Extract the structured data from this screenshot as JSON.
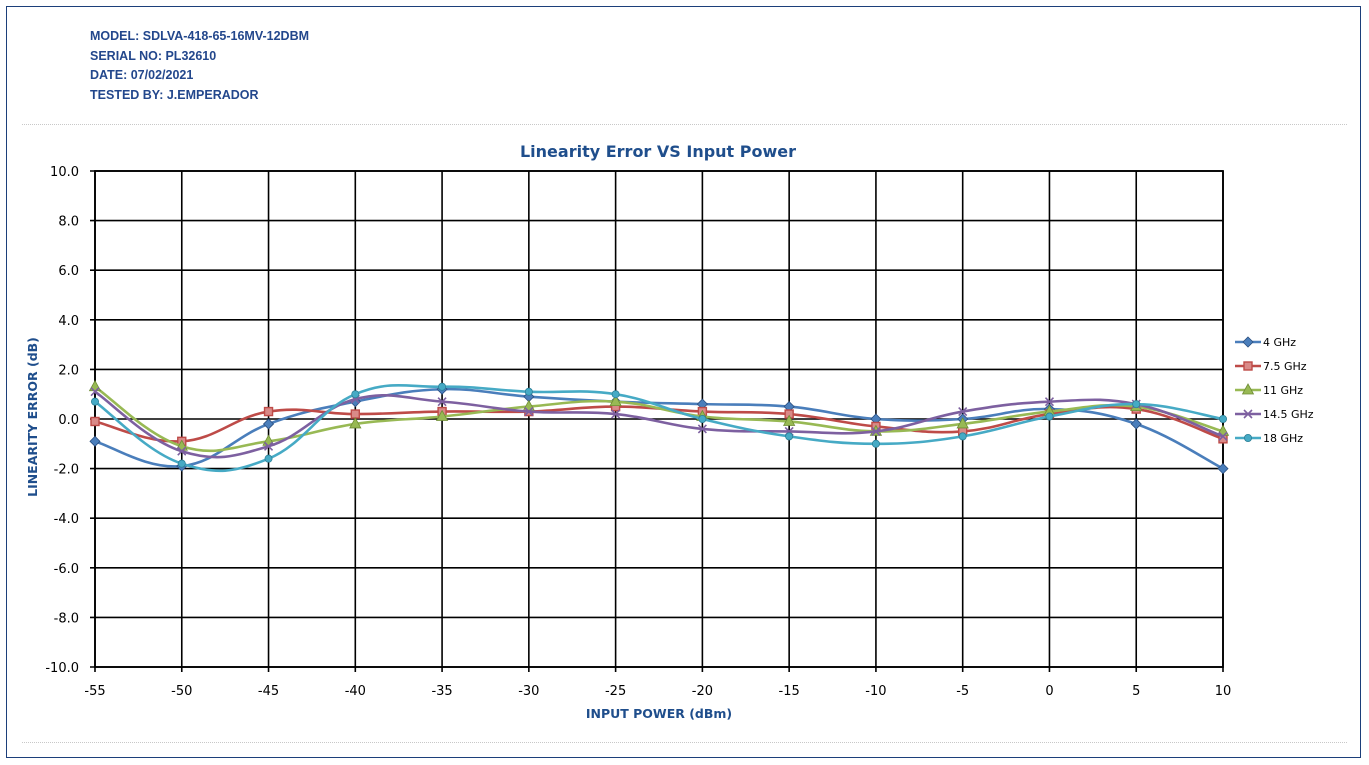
{
  "header": {
    "model": "MODEL: SDLVA-418-65-16MV-12DBM",
    "serial": "SERIAL NO: PL32610",
    "date": "DATE: 07/02/2021",
    "tested_by": "TESTED BY: J.EMPERADOR"
  },
  "chart_data": {
    "type": "line",
    "title": "Linearity Error VS Input Power",
    "xlabel": "INPUT POWER (dBm)",
    "ylabel": "LINEARITY ERROR (dB)",
    "x": [
      -55,
      -50,
      -45,
      -40,
      -35,
      -30,
      -25,
      -20,
      -15,
      -10,
      -5,
      0,
      5,
      10
    ],
    "xlim": [
      -55,
      10
    ],
    "ylim": [
      -10,
      10
    ],
    "yticks": [
      "10.0",
      "8.0",
      "6.0",
      "4.0",
      "2.0",
      "0.0",
      "-2.0",
      "-4.0",
      "-6.0",
      "-8.0",
      "-10.0"
    ],
    "xticks": [
      "-55",
      "-50",
      "-45",
      "-40",
      "-35",
      "-30",
      "-25",
      "-20",
      "-15",
      "-10",
      "-5",
      "0",
      "5",
      "10"
    ],
    "grid": true,
    "smooth": true,
    "legend_position": "right",
    "series": [
      {
        "name": "4 GHz",
        "color": "#4a7ebb",
        "marker": "diamond",
        "values": [
          -0.9,
          -1.9,
          -0.2,
          0.7,
          1.2,
          0.9,
          0.7,
          0.6,
          0.5,
          0.0,
          0.0,
          0.4,
          -0.2,
          -2.0
        ]
      },
      {
        "name": "7.5 GHz",
        "color": "#be4b48",
        "marker": "square",
        "values": [
          -0.1,
          -0.9,
          0.3,
          0.2,
          0.3,
          0.3,
          0.5,
          0.3,
          0.2,
          -0.3,
          -0.5,
          0.2,
          0.4,
          -0.8
        ]
      },
      {
        "name": "11 GHz",
        "color": "#98b954",
        "marker": "triangle",
        "values": [
          1.3,
          -1.1,
          -0.9,
          -0.2,
          0.1,
          0.5,
          0.7,
          0.1,
          -0.1,
          -0.5,
          -0.2,
          0.3,
          0.5,
          -0.5
        ]
      },
      {
        "name": "14.5 GHz",
        "color": "#7d60a0",
        "marker": "x",
        "values": [
          1.1,
          -1.3,
          -1.1,
          0.8,
          0.7,
          0.3,
          0.2,
          -0.4,
          -0.5,
          -0.5,
          0.3,
          0.7,
          0.6,
          -0.7
        ]
      },
      {
        "name": "18 GHz",
        "color": "#46aac5",
        "marker": "circle",
        "values": [
          0.7,
          -1.8,
          -1.6,
          1.0,
          1.3,
          1.1,
          1.0,
          0.0,
          -0.7,
          -1.0,
          -0.7,
          0.1,
          0.6,
          0.0
        ]
      }
    ]
  }
}
